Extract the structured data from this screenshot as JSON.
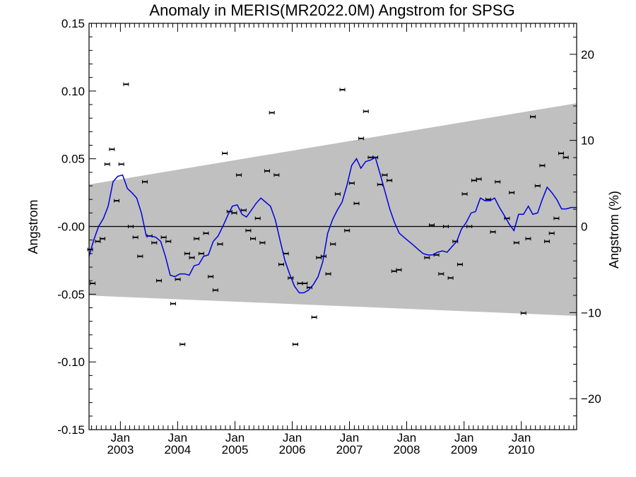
{
  "chart_data": {
    "type": "line",
    "title": "Anomaly in MERIS(MR2022.0M) Angstrom for SPSG",
    "ylabel": "Angstrom",
    "ylabel_right": "Angstrom (%)",
    "xlim": [
      "2002-06-15",
      "2010-12-20"
    ],
    "ylim": [
      -0.15,
      0.15
    ],
    "ylim_right": [
      -23.6,
      23.6
    ],
    "x_ticks": [
      {
        "date": "2003-01-01",
        "label1": "Jan",
        "label2": "2003"
      },
      {
        "date": "2004-01-01",
        "label1": "Jan",
        "label2": "2004"
      },
      {
        "date": "2005-01-01",
        "label1": "Jan",
        "label2": "2005"
      },
      {
        "date": "2006-01-01",
        "label1": "Jan",
        "label2": "2006"
      },
      {
        "date": "2007-01-01",
        "label1": "Jan",
        "label2": "2007"
      },
      {
        "date": "2008-01-01",
        "label1": "Jan",
        "label2": "2008"
      },
      {
        "date": "2009-01-01",
        "label1": "Jan",
        "label2": "2009"
      },
      {
        "date": "2010-01-01",
        "label1": "Jan",
        "label2": "2010"
      }
    ],
    "y_ticks": [
      {
        "value": 0.15,
        "label": "0.15"
      },
      {
        "value": 0.1,
        "label": "0.10"
      },
      {
        "value": 0.05,
        "label": "0.05"
      },
      {
        "value": 0.0,
        "label": "-0.00"
      },
      {
        "value": -0.05,
        "label": "-0.05"
      },
      {
        "value": -0.1,
        "label": "-0.10"
      },
      {
        "value": -0.15,
        "label": "-0.15"
      }
    ],
    "y_ticks_right": [
      {
        "value": 20,
        "label": "20"
      },
      {
        "value": 10,
        "label": "10"
      },
      {
        "value": 0,
        "label": "0"
      },
      {
        "value": -10,
        "label": "−10"
      },
      {
        "value": -20,
        "label": "−20"
      }
    ],
    "colors": {
      "band": "#c0c0c0",
      "line": "#0000dd",
      "points": "#000000",
      "zero_line": "#000000"
    },
    "band": {
      "upper": [
        [
          "2002-06-15",
          0.031
        ],
        [
          "2010-12-20",
          0.091
        ]
      ],
      "lower": [
        [
          "2002-06-15",
          -0.051
        ],
        [
          "2010-12-20",
          -0.066
        ]
      ]
    },
    "points": [
      [
        "2002-06-22",
        -0.017
      ],
      [
        "2002-07-08",
        -0.042
      ],
      [
        "2002-08-10",
        -0.011
      ],
      [
        "2002-09-09",
        -0.009
      ],
      [
        "2002-10-09",
        0.046
      ],
      [
        "2002-11-08",
        0.057
      ],
      [
        "2002-12-08",
        0.019
      ],
      [
        "2003-01-07",
        0.046
      ],
      [
        "2003-02-06",
        0.105
      ],
      [
        "2003-03-08",
        0.0
      ],
      [
        "2003-04-07",
        -0.008
      ],
      [
        "2003-05-07",
        -0.022
      ],
      [
        "2003-06-06",
        0.033
      ],
      [
        "2003-07-06",
        -0.007
      ],
      [
        "2003-08-05",
        -0.012
      ],
      [
        "2003-09-04",
        -0.04
      ],
      [
        "2003-10-04",
        -0.008
      ],
      [
        "2003-11-03",
        -0.011
      ],
      [
        "2003-12-03",
        -0.057
      ],
      [
        "2004-01-02",
        -0.039
      ],
      [
        "2004-02-01",
        -0.087
      ],
      [
        "2004-03-02",
        -0.02
      ],
      [
        "2004-04-01",
        -0.023
      ],
      [
        "2004-05-01",
        -0.009
      ],
      [
        "2004-05-31",
        -0.02
      ],
      [
        "2004-06-30",
        -0.005
      ],
      [
        "2004-07-30",
        -0.037
      ],
      [
        "2004-08-29",
        -0.047
      ],
      [
        "2004-09-28",
        -0.013
      ],
      [
        "2004-10-28",
        0.054
      ],
      [
        "2004-11-27",
        0.011
      ],
      [
        "2004-12-27",
        0.01
      ],
      [
        "2005-01-26",
        0.038
      ],
      [
        "2005-02-25",
        0.012
      ],
      [
        "2005-03-27",
        -0.003
      ],
      [
        "2005-04-26",
        -0.009
      ],
      [
        "2005-05-26",
        0.006
      ],
      [
        "2005-06-25",
        -0.012
      ],
      [
        "2005-07-25",
        0.041
      ],
      [
        "2005-08-24",
        0.084
      ],
      [
        "2005-09-23",
        0.038
      ],
      [
        "2005-10-23",
        -0.028
      ],
      [
        "2005-11-22",
        -0.02
      ],
      [
        "2005-12-22",
        -0.038
      ],
      [
        "2006-01-21",
        -0.087
      ],
      [
        "2006-02-20",
        -0.042
      ],
      [
        "2006-03-22",
        -0.042
      ],
      [
        "2006-04-21",
        -0.045
      ],
      [
        "2006-05-21",
        -0.067
      ],
      [
        "2006-06-20",
        -0.023
      ],
      [
        "2006-07-20",
        -0.022
      ],
      [
        "2006-08-19",
        -0.035
      ],
      [
        "2006-09-18",
        -0.013
      ],
      [
        "2006-10-18",
        0.024
      ],
      [
        "2006-11-17",
        0.101
      ],
      [
        "2006-12-17",
        -0.003
      ],
      [
        "2007-01-16",
        0.032
      ],
      [
        "2007-02-15",
        0.017
      ],
      [
        "2007-03-17",
        0.065
      ],
      [
        "2007-04-16",
        0.085
      ],
      [
        "2007-05-16",
        0.051
      ],
      [
        "2007-06-15",
        0.051
      ],
      [
        "2007-07-15",
        0.031
      ],
      [
        "2007-08-14",
        0.038
      ],
      [
        "2007-09-13",
        0.034
      ],
      [
        "2007-10-13",
        -0.033
      ],
      [
        "2007-11-12",
        -0.032
      ],
      [
        "2008-05-10",
        -0.023
      ],
      [
        "2008-06-09",
        0.001
      ],
      [
        "2008-07-09",
        -0.021
      ],
      [
        "2008-08-08",
        -0.035
      ],
      [
        "2008-09-07",
        0.0
      ],
      [
        "2008-10-07",
        -0.038
      ],
      [
        "2008-11-06",
        -0.011
      ],
      [
        "2008-12-06",
        -0.028
      ],
      [
        "2009-01-05",
        0.024
      ],
      [
        "2009-02-04",
        0.0
      ],
      [
        "2009-03-06",
        0.034
      ],
      [
        "2009-04-05",
        0.035
      ],
      [
        "2009-06-04",
        0.02
      ],
      [
        "2009-07-04",
        -0.004
      ],
      [
        "2009-08-03",
        0.033
      ],
      [
        "2009-10-02",
        0.006
      ],
      [
        "2009-11-01",
        0.025
      ],
      [
        "2009-12-01",
        -0.012
      ],
      [
        "2010-01-15",
        -0.064
      ],
      [
        "2010-02-14",
        -0.009
      ],
      [
        "2010-03-16",
        0.081
      ],
      [
        "2010-04-15",
        0.03
      ],
      [
        "2010-05-15",
        0.045
      ],
      [
        "2010-06-14",
        -0.011
      ],
      [
        "2010-07-14",
        -0.005
      ],
      [
        "2010-08-13",
        0.006
      ],
      [
        "2010-09-12",
        0.054
      ],
      [
        "2010-10-12",
        0.051
      ]
    ],
    "series": [
      {
        "values": [
          [
            "2002-06-15",
            -0.022
          ],
          [
            "2002-07-15",
            -0.01
          ],
          [
            "2002-08-15",
            0.0
          ],
          [
            "2002-09-15",
            0.006
          ],
          [
            "2002-10-15",
            0.015
          ],
          [
            "2002-11-15",
            0.033
          ],
          [
            "2002-12-15",
            0.037
          ],
          [
            "2003-01-15",
            0.038
          ],
          [
            "2003-02-15",
            0.028
          ],
          [
            "2003-03-15",
            0.025
          ],
          [
            "2003-04-15",
            0.021
          ],
          [
            "2003-05-15",
            0.01
          ],
          [
            "2003-06-15",
            -0.007
          ],
          [
            "2003-07-15",
            -0.007
          ],
          [
            "2003-08-15",
            -0.008
          ],
          [
            "2003-09-15",
            -0.011
          ],
          [
            "2003-10-15",
            -0.022
          ],
          [
            "2003-11-15",
            -0.036
          ],
          [
            "2003-12-15",
            -0.037
          ],
          [
            "2004-01-15",
            -0.035
          ],
          [
            "2004-02-15",
            -0.035
          ],
          [
            "2004-03-15",
            -0.036
          ],
          [
            "2004-04-15",
            -0.029
          ],
          [
            "2004-05-15",
            -0.028
          ],
          [
            "2004-06-15",
            -0.022
          ],
          [
            "2004-07-15",
            -0.021
          ],
          [
            "2004-08-15",
            -0.011
          ],
          [
            "2004-09-15",
            -0.007
          ],
          [
            "2004-10-15",
            0.0
          ],
          [
            "2004-11-15",
            0.008
          ],
          [
            "2004-12-15",
            0.015
          ],
          [
            "2005-01-15",
            0.016
          ],
          [
            "2005-02-15",
            0.009
          ],
          [
            "2005-03-15",
            0.007
          ],
          [
            "2005-04-15",
            0.012
          ],
          [
            "2005-05-15",
            0.017
          ],
          [
            "2005-06-15",
            0.021
          ],
          [
            "2005-07-15",
            0.018
          ],
          [
            "2005-08-15",
            0.015
          ],
          [
            "2005-09-15",
            0.005
          ],
          [
            "2005-10-15",
            -0.01
          ],
          [
            "2005-11-15",
            -0.025
          ],
          [
            "2005-12-15",
            -0.035
          ],
          [
            "2006-01-15",
            -0.044
          ],
          [
            "2006-02-15",
            -0.049
          ],
          [
            "2006-03-15",
            -0.049
          ],
          [
            "2006-04-15",
            -0.047
          ],
          [
            "2006-05-15",
            -0.043
          ],
          [
            "2006-06-15",
            -0.037
          ],
          [
            "2006-07-15",
            -0.026
          ],
          [
            "2006-08-15",
            -0.005
          ],
          [
            "2006-09-15",
            0.005
          ],
          [
            "2006-10-15",
            0.012
          ],
          [
            "2006-11-15",
            0.018
          ],
          [
            "2006-12-15",
            0.03
          ],
          [
            "2007-01-15",
            0.045
          ],
          [
            "2007-02-15",
            0.05
          ],
          [
            "2007-03-15",
            0.043
          ],
          [
            "2007-04-15",
            0.048
          ],
          [
            "2007-05-15",
            0.049
          ],
          [
            "2007-06-15",
            0.051
          ],
          [
            "2007-07-15",
            0.039
          ],
          [
            "2007-08-15",
            0.026
          ],
          [
            "2007-09-15",
            0.013
          ],
          [
            "2007-10-15",
            0.003
          ],
          [
            "2007-11-15",
            -0.005
          ],
          [
            "2007-12-15",
            -0.008
          ],
          [
            "2008-01-15",
            -0.011
          ],
          [
            "2008-02-15",
            -0.014
          ],
          [
            "2008-03-15",
            -0.017
          ],
          [
            "2008-04-15",
            -0.02
          ],
          [
            "2008-05-15",
            -0.021
          ],
          [
            "2008-06-15",
            -0.021
          ],
          [
            "2008-07-15",
            -0.019
          ],
          [
            "2008-08-15",
            -0.018
          ],
          [
            "2008-09-15",
            -0.019
          ],
          [
            "2008-10-15",
            -0.015
          ],
          [
            "2008-11-15",
            -0.011
          ],
          [
            "2008-12-15",
            -0.002
          ],
          [
            "2009-01-15",
            0.003
          ],
          [
            "2009-02-15",
            0.01
          ],
          [
            "2009-03-15",
            0.011
          ],
          [
            "2009-04-15",
            0.021
          ],
          [
            "2009-05-15",
            0.019
          ],
          [
            "2009-06-15",
            0.019
          ],
          [
            "2009-07-15",
            0.021
          ],
          [
            "2009-08-15",
            0.014
          ],
          [
            "2009-09-15",
            0.008
          ],
          [
            "2009-10-15",
            0.002
          ],
          [
            "2009-11-15",
            -0.003
          ],
          [
            "2009-12-15",
            0.009
          ],
          [
            "2010-01-15",
            0.009
          ],
          [
            "2010-02-15",
            0.015
          ],
          [
            "2010-03-15",
            0.009
          ],
          [
            "2010-04-15",
            0.01
          ],
          [
            "2010-05-15",
            0.02
          ],
          [
            "2010-06-15",
            0.029
          ],
          [
            "2010-07-15",
            0.025
          ],
          [
            "2010-08-15",
            0.02
          ],
          [
            "2010-09-15",
            0.013
          ],
          [
            "2010-10-15",
            0.013
          ],
          [
            "2010-11-15",
            0.014
          ],
          [
            "2010-12-20",
            0.014
          ]
        ]
      }
    ],
    "grid": false
  }
}
